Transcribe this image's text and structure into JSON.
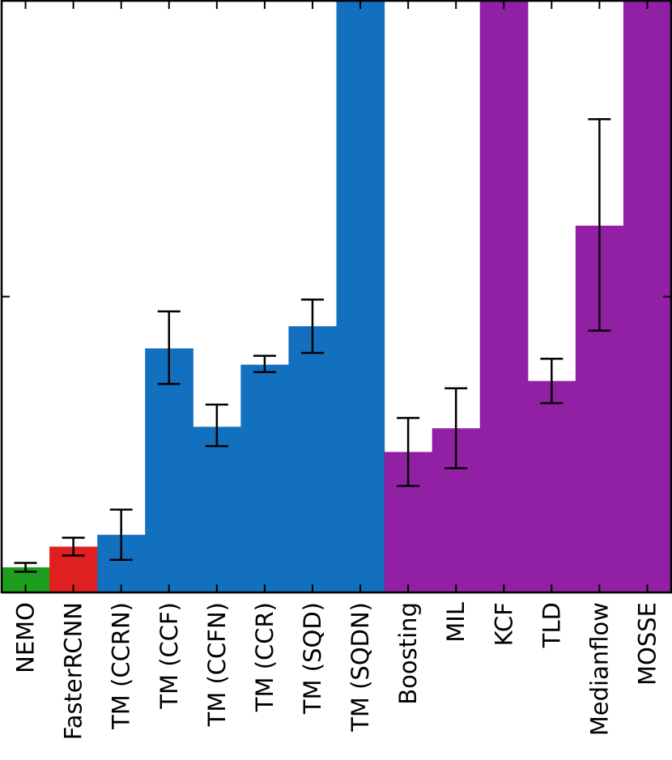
{
  "chart_data": {
    "type": "bar",
    "title": "",
    "xlabel": "",
    "ylabel": "",
    "ylim": [
      0,
      2
    ],
    "y_ticks": [
      1
    ],
    "y_tick_labels_shown": false,
    "grid": false,
    "legend": "none",
    "categories": [
      "NEMO",
      "FasterRCNN",
      "TM (CCRN)",
      "TM (CCF)",
      "TM (CCFN)",
      "TM (CCR)",
      "TM (SQD)",
      "TM (SQDN)",
      "Boosting",
      "MIL",
      "KCF",
      "TLD",
      "Medianflow",
      "MOSSE"
    ],
    "values": [
      0.085,
      0.155,
      0.195,
      0.825,
      0.56,
      0.77,
      0.9,
      2.0,
      0.475,
      0.555,
      2.0,
      0.715,
      1.24,
      2.0
    ],
    "error_low": [
      0.07,
      0.125,
      0.11,
      0.705,
      0.495,
      0.745,
      0.81,
      null,
      0.36,
      0.42,
      null,
      0.64,
      0.885,
      null
    ],
    "error_high": [
      0.1,
      0.185,
      0.28,
      0.95,
      0.635,
      0.8,
      0.99,
      null,
      0.59,
      0.69,
      null,
      0.79,
      1.6,
      null
    ],
    "colors": [
      "#1e9e1e",
      "#e02020",
      "#1270bf",
      "#1270bf",
      "#1270bf",
      "#1270bf",
      "#1270bf",
      "#1270bf",
      "#9220a4",
      "#9220a4",
      "#9220a4",
      "#9220a4",
      "#9220a4",
      "#9220a4"
    ]
  }
}
